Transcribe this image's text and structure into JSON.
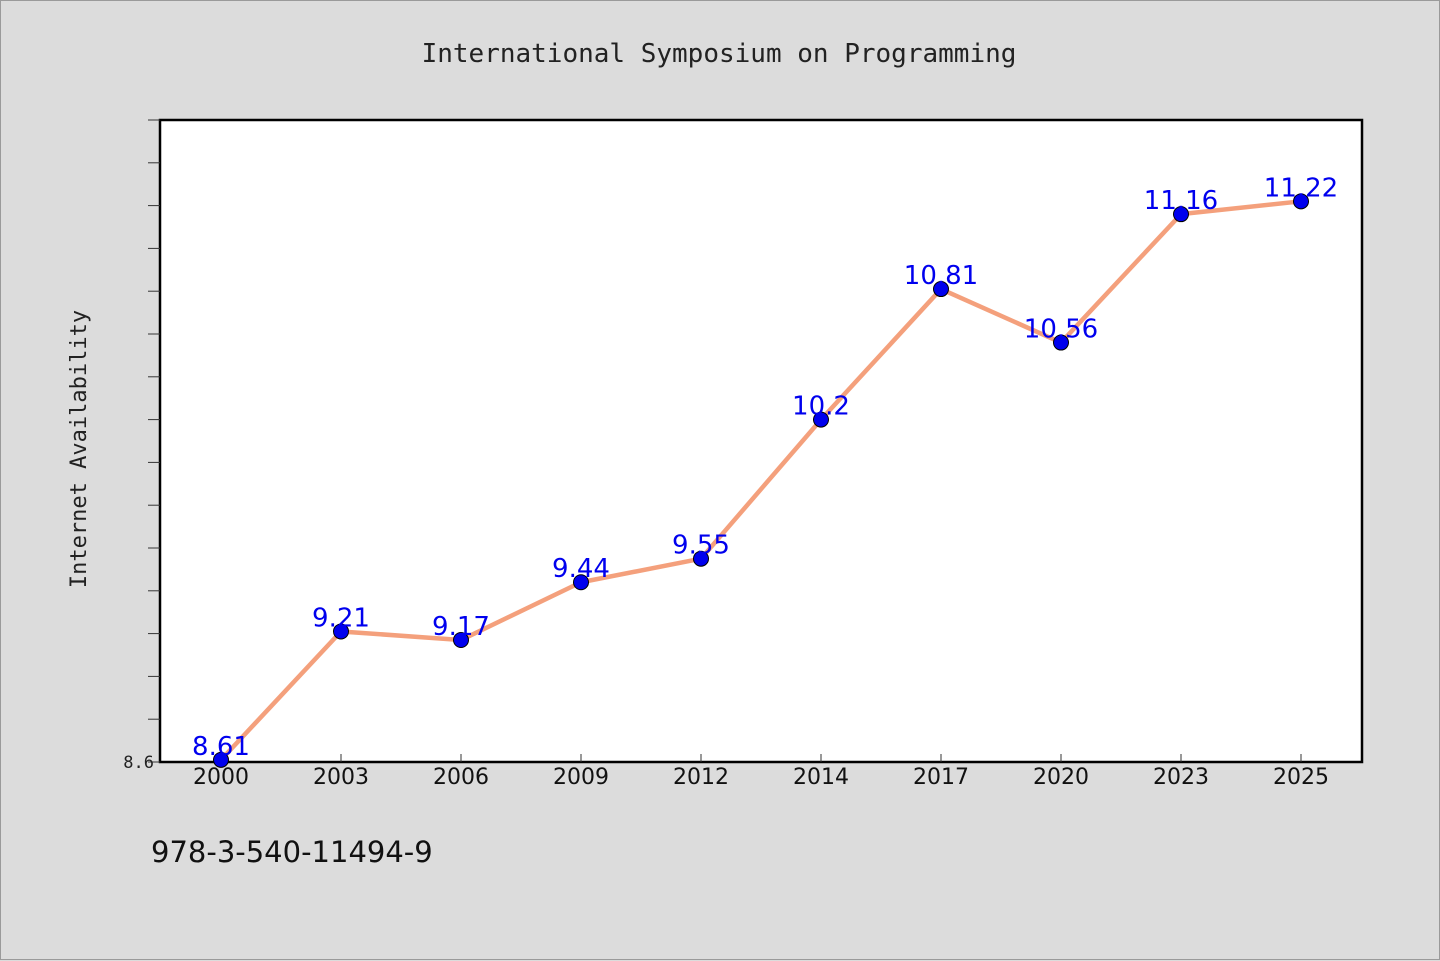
{
  "chart_data": {
    "type": "line",
    "title": "International Symposium on Programming",
    "xlabel": "",
    "ylabel": "Internet Availability",
    "categories": [
      "2000",
      "2003",
      "2006",
      "2009",
      "2012",
      "2014",
      "2017",
      "2020",
      "2023",
      "2025"
    ],
    "series": [
      {
        "values": [
          8.61,
          9.21,
          9.17,
          9.44,
          9.55,
          10.2,
          10.81,
          10.56,
          11.16,
          11.22
        ]
      }
    ],
    "ylim": [
      8.6,
      11.6
    ],
    "ytick_labels": [
      "8.6"
    ],
    "data_labels": [
      "8.61",
      "9.21",
      "9.17",
      "9.44",
      "9.55",
      "10.2",
      "10.81",
      "10.56",
      "11.16",
      "11.22"
    ],
    "grid": false,
    "line_color": "#f4a07c",
    "marker_color": "#0000ee",
    "label_color": "#0000ee"
  },
  "footer": {
    "isbn": "978-3-540-11494-9"
  }
}
